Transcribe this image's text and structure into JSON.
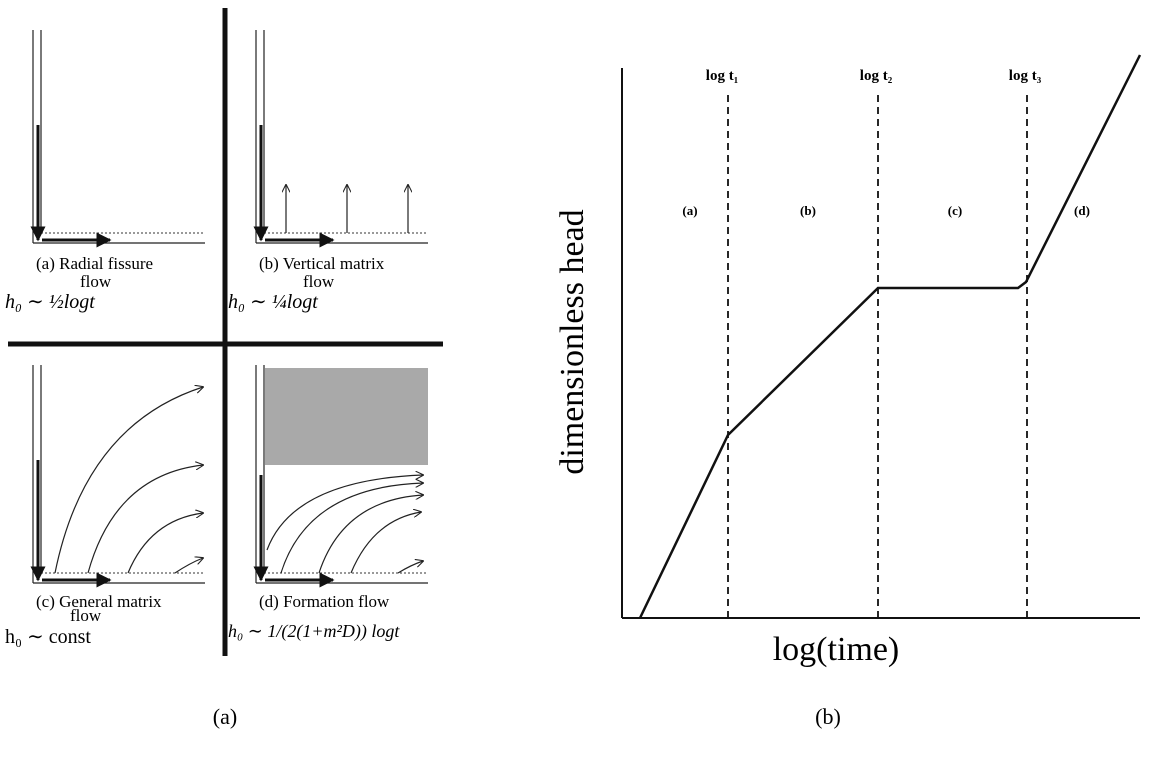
{
  "panel_a": {
    "quadrants": [
      {
        "label": [
          "(a) Radial fissure",
          "flow"
        ],
        "formula": "h₀ ∼ ½logt"
      },
      {
        "label": [
          "(b) Vertical matrix",
          "flow"
        ],
        "formula": "h₀ ∼ ¼logt"
      },
      {
        "label": [
          "(c) General matrix",
          "flow"
        ],
        "formula": "h₀ ∼ const"
      },
      {
        "label": [
          "(d) Formation flow"
        ],
        "formula": "h₀ ∼ 1/(2(1+m²D)) logt"
      }
    ],
    "caption": "(a)"
  },
  "panel_b": {
    "y_label": "dimensionless head",
    "x_label": "log(time)",
    "markers": [
      "log t₁",
      "log t₂",
      "log t₃"
    ],
    "regions": [
      "(a)",
      "(b)",
      "(c)",
      "(d)"
    ],
    "caption": "(b)"
  }
}
